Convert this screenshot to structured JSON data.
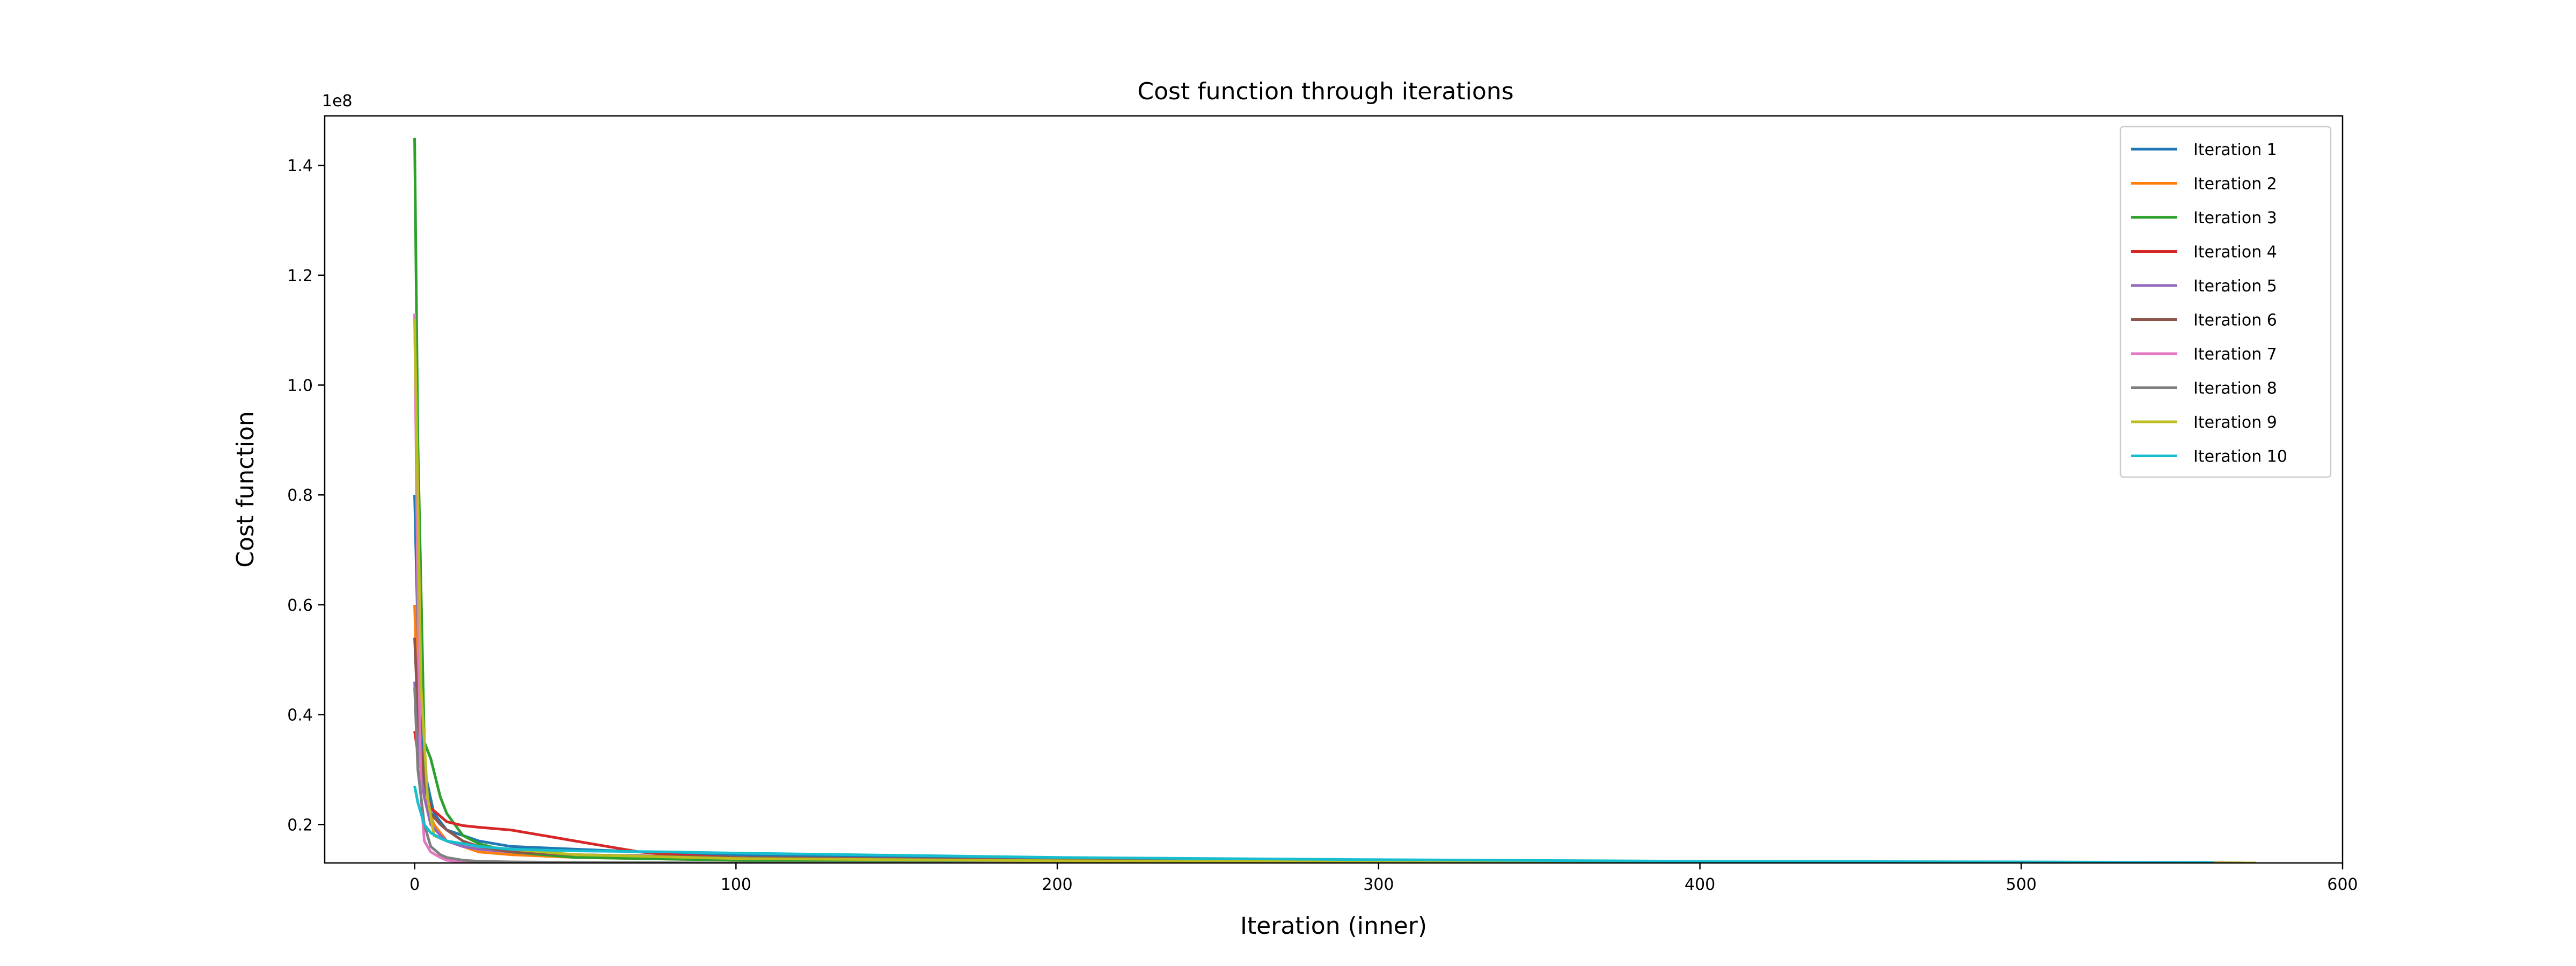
{
  "chart_data": {
    "type": "line",
    "title": "Cost function through iterations",
    "xlabel": "Iteration (inner)",
    "ylabel": "Cost function",
    "y_offset_label": "1e8",
    "xlim": [
      -28,
      600
    ],
    "ylim": [
      0.13,
      1.49
    ],
    "x_ticks": [
      0,
      100,
      200,
      300,
      400,
      500,
      600
    ],
    "x_tick_labels": [
      "0",
      "100",
      "200",
      "300",
      "400",
      "500",
      "600"
    ],
    "y_ticks": [
      0.2,
      0.4,
      0.6,
      0.8,
      1.0,
      1.2,
      1.4
    ],
    "y_tick_labels": [
      "0.2",
      "0.4",
      "0.6",
      "0.8",
      "1.0",
      "1.2",
      "1.4"
    ],
    "grid": false,
    "legend_position": "top-right",
    "series": [
      {
        "name": "Iteration 1",
        "color": "#1f77b4",
        "x": [
          0,
          1,
          3,
          6,
          10,
          15,
          20,
          30,
          50,
          80,
          100,
          150,
          200,
          300,
          400,
          500,
          560
        ],
        "y": [
          0.8,
          0.55,
          0.3,
          0.22,
          0.19,
          0.18,
          0.17,
          0.16,
          0.155,
          0.148,
          0.145,
          0.14,
          0.137,
          0.134,
          0.132,
          0.131,
          0.131
        ]
      },
      {
        "name": "Iteration 2",
        "color": "#ff7f0e",
        "x": [
          0,
          1,
          3,
          6,
          10,
          15,
          20,
          30,
          50,
          80,
          100,
          200,
          300,
          400,
          500,
          570
        ],
        "y": [
          0.6,
          0.4,
          0.25,
          0.2,
          0.17,
          0.16,
          0.15,
          0.145,
          0.14,
          0.137,
          0.135,
          0.133,
          0.132,
          0.131,
          0.131,
          0.13
        ]
      },
      {
        "name": "Iteration 3",
        "color": "#2ca02c",
        "x": [
          0,
          1,
          3,
          5,
          8,
          10,
          15,
          20,
          30,
          50,
          100,
          200,
          300,
          400,
          500,
          570
        ],
        "y": [
          1.45,
          0.9,
          0.35,
          0.32,
          0.25,
          0.22,
          0.18,
          0.165,
          0.15,
          0.14,
          0.135,
          0.133,
          0.132,
          0.131,
          0.131,
          0.13
        ]
      },
      {
        "name": "Iteration 4",
        "color": "#d62728",
        "x": [
          0,
          1,
          3,
          5,
          10,
          15,
          20,
          30,
          40,
          50,
          60,
          70,
          80,
          100,
          200,
          300,
          400,
          500,
          570
        ],
        "y": [
          0.37,
          0.33,
          0.27,
          0.23,
          0.205,
          0.198,
          0.195,
          0.19,
          0.18,
          0.17,
          0.16,
          0.15,
          0.145,
          0.14,
          0.135,
          0.133,
          0.132,
          0.131,
          0.13
        ]
      },
      {
        "name": "Iteration 5",
        "color": "#9467bd",
        "x": [
          0,
          1,
          3,
          5,
          8,
          10,
          15,
          20,
          30,
          50,
          100,
          200,
          300,
          400,
          500,
          570
        ],
        "y": [
          0.46,
          0.35,
          0.25,
          0.2,
          0.18,
          0.17,
          0.16,
          0.155,
          0.15,
          0.145,
          0.14,
          0.135,
          0.133,
          0.132,
          0.131,
          0.13
        ]
      },
      {
        "name": "Iteration 6",
        "color": "#8c564b",
        "x": [
          0,
          1,
          3,
          5,
          8,
          10,
          15,
          20,
          30,
          50,
          100,
          200,
          300,
          400,
          500,
          570
        ],
        "y": [
          0.54,
          0.4,
          0.28,
          0.22,
          0.2,
          0.19,
          0.17,
          0.16,
          0.15,
          0.145,
          0.14,
          0.135,
          0.133,
          0.132,
          0.131,
          0.13
        ]
      },
      {
        "name": "Iteration 7",
        "color": "#e377c2",
        "x": [
          0,
          1,
          2,
          3,
          5,
          8,
          10,
          15,
          20,
          30,
          50,
          100,
          200,
          300,
          400,
          500,
          570
        ],
        "y": [
          1.13,
          0.6,
          0.25,
          0.17,
          0.15,
          0.14,
          0.135,
          0.132,
          0.131,
          0.13,
          0.13,
          0.13,
          0.13,
          0.13,
          0.13,
          0.13,
          0.13
        ]
      },
      {
        "name": "Iteration 8",
        "color": "#7f7f7f",
        "x": [
          0,
          1,
          3,
          5,
          8,
          10,
          15,
          20,
          30,
          50,
          100,
          200,
          300,
          400,
          500,
          570
        ],
        "y": [
          0.45,
          0.3,
          0.2,
          0.16,
          0.145,
          0.14,
          0.135,
          0.133,
          0.132,
          0.131,
          0.13,
          0.13,
          0.13,
          0.13,
          0.13,
          0.13
        ]
      },
      {
        "name": "Iteration 9",
        "color": "#bcbd22",
        "x": [
          0,
          1,
          2,
          4,
          6,
          10,
          15,
          20,
          30,
          50,
          100,
          200,
          300,
          400,
          500,
          573
        ],
        "y": [
          1.12,
          0.8,
          0.45,
          0.25,
          0.18,
          0.17,
          0.165,
          0.16,
          0.155,
          0.145,
          0.138,
          0.134,
          0.132,
          0.131,
          0.131,
          0.13
        ]
      },
      {
        "name": "Iteration 10",
        "color": "#17becf",
        "x": [
          0,
          1,
          3,
          5,
          8,
          10,
          15,
          20,
          30,
          50,
          80,
          100,
          200,
          300,
          400,
          500,
          560
        ],
        "y": [
          0.27,
          0.24,
          0.2,
          0.185,
          0.175,
          0.17,
          0.165,
          0.16,
          0.155,
          0.152,
          0.15,
          0.148,
          0.14,
          0.136,
          0.133,
          0.132,
          0.131
        ]
      }
    ]
  }
}
